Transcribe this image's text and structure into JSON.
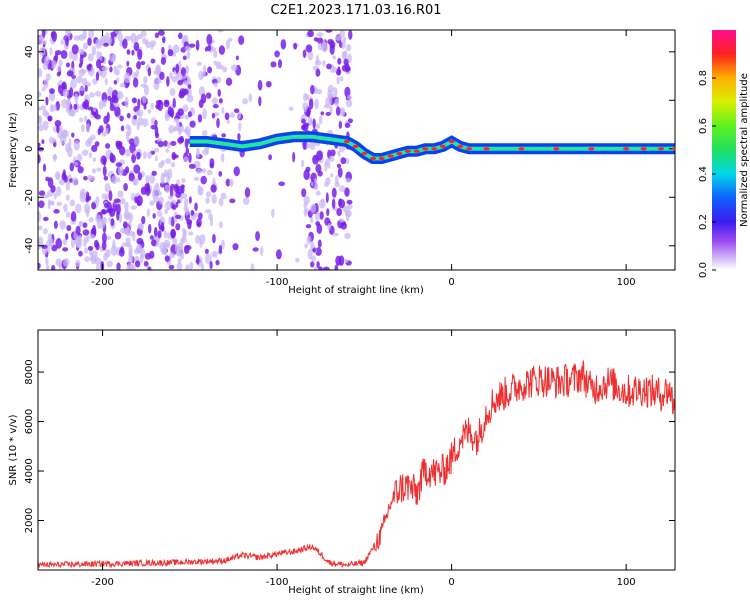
{
  "title": "C2E1.2023.171.03.16.R01",
  "colors": {
    "snr_line": "#f03030",
    "spectrum_low": "#c8b4f5",
    "spectrum_mid": "#7a1fe8"
  },
  "chart_data": [
    {
      "type": "heatmap",
      "xlabel": "Height of straight line (km)",
      "ylabel": "Frequency (Hz)",
      "xlim": [
        -237,
        128
      ],
      "ylim": [
        -50,
        49
      ],
      "xticks": [
        -200,
        -100,
        0,
        100
      ],
      "yticks": [
        -40,
        -20,
        0,
        20,
        40
      ],
      "colorbar": {
        "label": "Normalized spectral amplitude",
        "range": [
          0,
          1
        ],
        "ticks": [
          "0.0",
          "0.2",
          "0.4",
          "0.6",
          "0.8"
        ],
        "tick_values": [
          0,
          0.2,
          0.4,
          0.6,
          0.8
        ]
      },
      "ridge": {
        "x": [
          -150,
          -140,
          -130,
          -120,
          -110,
          -100,
          -90,
          -80,
          -60,
          -55,
          -50,
          -45,
          -40,
          -35,
          -30,
          -25,
          -20,
          -15,
          -10,
          -5,
          0,
          5,
          10,
          20,
          40,
          60,
          80,
          100,
          110,
          120,
          128
        ],
        "y": [
          3,
          3,
          2,
          1,
          2,
          4,
          5,
          5,
          3,
          1,
          -2,
          -4,
          -4,
          -3,
          -2,
          -1,
          -1,
          0,
          0,
          1,
          3,
          1,
          0,
          0,
          0,
          0,
          0,
          0,
          0,
          0,
          0
        ]
      }
    },
    {
      "type": "line",
      "xlabel": "Height of straight line (km)",
      "ylabel": "SNR (10 * v/v)",
      "xlim": [
        -237,
        128
      ],
      "ylim": [
        0,
        9700
      ],
      "xticks": [
        -200,
        -100,
        0,
        100
      ],
      "yticks": [
        2000,
        4000,
        6000,
        8000
      ],
      "series": [
        {
          "x": [
            -237,
            -200,
            -160,
            -130,
            -120,
            -110,
            -100,
            -90,
            -80,
            -75,
            -70,
            -60,
            -50,
            -45,
            -40,
            -35,
            -30,
            -25,
            -20,
            -15,
            -10,
            -5,
            0,
            5,
            10,
            15,
            20,
            25,
            30,
            40,
            50,
            60,
            70,
            75,
            80,
            90,
            100,
            110,
            120,
            125,
            128
          ],
          "y": [
            200,
            250,
            300,
            380,
            600,
            500,
            650,
            750,
            950,
            650,
            300,
            200,
            300,
            900,
            1500,
            2700,
            3300,
            3400,
            3100,
            4100,
            3900,
            4000,
            4500,
            5300,
            5600,
            5300,
            6400,
            6900,
            7100,
            7500,
            7700,
            7600,
            7700,
            7900,
            7300,
            7600,
            7200,
            7300,
            7100,
            7300,
            6400
          ]
        }
      ]
    }
  ]
}
